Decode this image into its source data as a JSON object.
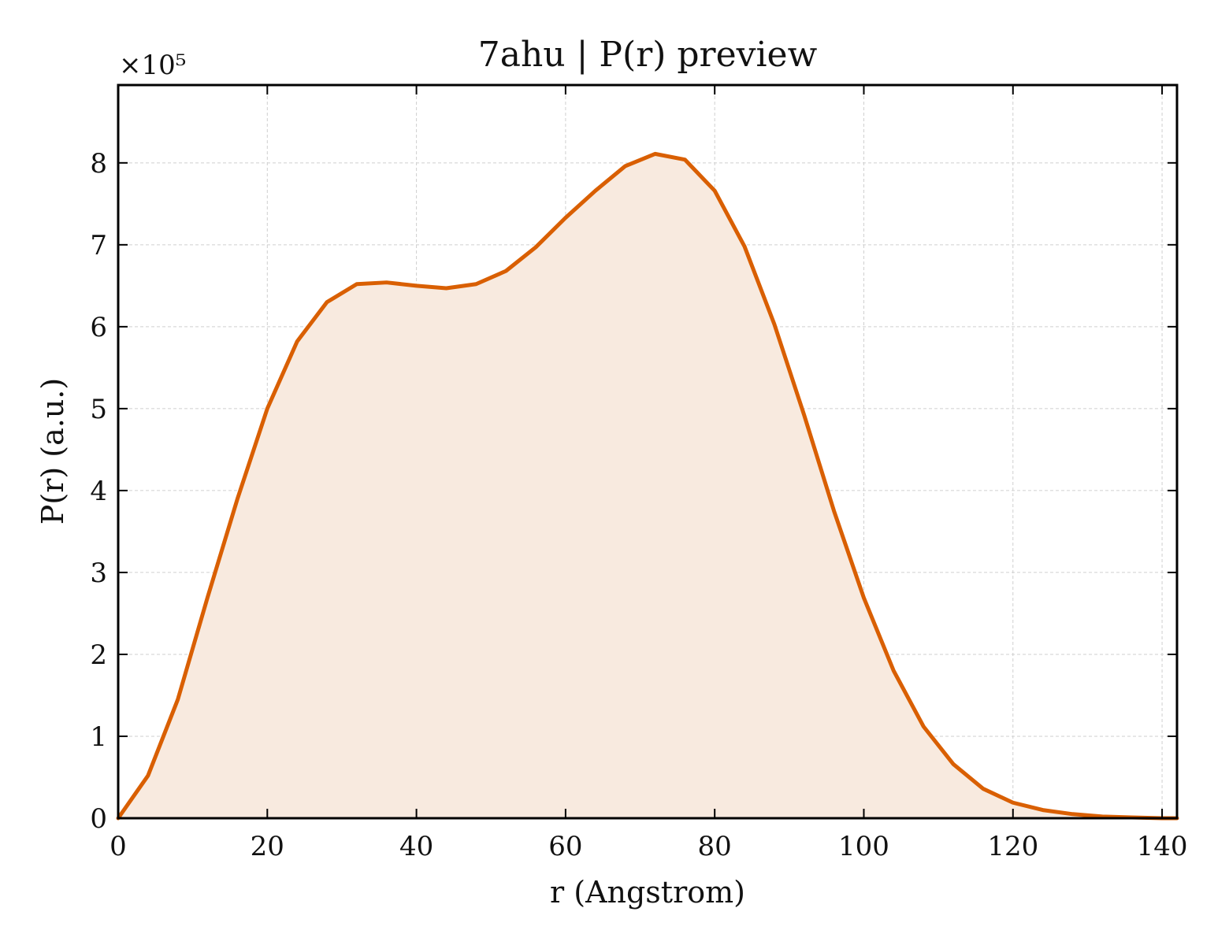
{
  "chart_data": {
    "type": "area",
    "title": "7ahu | P(r) preview",
    "xlabel": "r (Angstrom)",
    "ylabel": "P(r) (a.u.)",
    "y_multiplier_label": "×10⁵",
    "xlim": [
      0,
      142
    ],
    "ylim": [
      0,
      8.95
    ],
    "x_ticks": [
      "0",
      "20",
      "40",
      "60",
      "80",
      "100",
      "120",
      "140"
    ],
    "y_ticks": [
      "0",
      "1",
      "2",
      "3",
      "4",
      "5",
      "6",
      "7",
      "8"
    ],
    "grid": true,
    "line_color": "#d95f02",
    "fill_color": "#f8eadf",
    "series": [
      {
        "x": [
          0,
          4,
          8,
          12,
          16,
          20,
          24,
          28,
          32,
          36,
          40,
          44,
          48,
          52,
          56,
          60,
          64,
          68,
          72,
          76,
          80,
          84,
          88,
          92,
          96,
          100,
          104,
          108,
          112,
          116,
          120,
          124,
          128,
          132,
          136,
          140,
          142
        ],
        "y": [
          0.0,
          0.52,
          1.45,
          2.7,
          3.9,
          5.0,
          5.82,
          6.3,
          6.52,
          6.54,
          6.5,
          6.47,
          6.52,
          6.68,
          6.97,
          7.33,
          7.66,
          7.96,
          8.11,
          8.04,
          7.66,
          6.98,
          6.03,
          4.92,
          3.75,
          2.69,
          1.8,
          1.12,
          0.66,
          0.36,
          0.19,
          0.1,
          0.05,
          0.02,
          0.01,
          0.0,
          0.0
        ]
      }
    ]
  }
}
